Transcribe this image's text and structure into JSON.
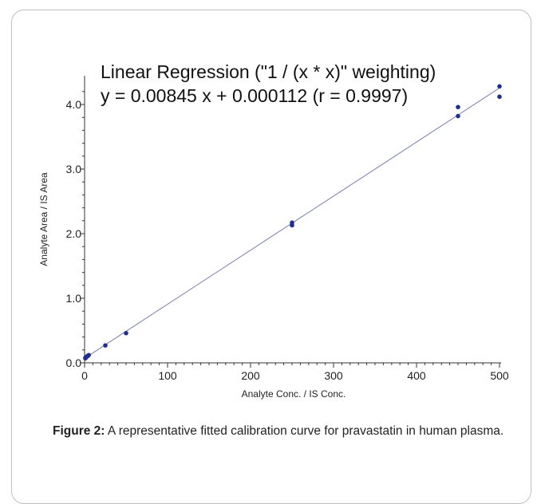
{
  "chart_data": {
    "type": "scatter",
    "annotation_line1": "Linear Regression (\"1  / (x * x)\" weighting)",
    "annotation_line2": "y = 0.00845 x + 0.000112 (r = 0.9997)",
    "xlabel": "Analyte Conc. / IS Conc.",
    "ylabel": "Analyte Area / IS Area",
    "xlim": [
      0,
      500
    ],
    "ylim": [
      0,
      4.4
    ],
    "xticks": [
      0,
      100,
      200,
      300,
      400,
      500
    ],
    "xtick_labels": [
      "0",
      "100",
      "200",
      "300",
      "400",
      "500"
    ],
    "yticks": [
      0,
      1,
      2,
      3,
      4
    ],
    "ytick_labels": [
      "0.0",
      "1.0",
      "2.0",
      "3.0",
      "4.0"
    ],
    "fit": {
      "slope": 0.00845,
      "intercept": 0.000112
    },
    "grid": false,
    "colors": {
      "points": "#1f2f8f",
      "fit_line": "#7a7fb0",
      "axis": "#333333"
    },
    "series": [
      {
        "x": [
          1,
          1,
          2,
          3,
          4,
          5,
          25,
          50,
          250,
          250,
          450,
          450,
          500,
          500
        ],
        "y": [
          0.07,
          0.08,
          0.09,
          0.1,
          0.11,
          0.12,
          0.27,
          0.46,
          2.13,
          2.17,
          3.82,
          3.96,
          4.12,
          4.28
        ]
      }
    ]
  },
  "caption": {
    "label": "Figure 2:",
    "text": " A representative fitted calibration curve for pravastatin in human plasma."
  }
}
